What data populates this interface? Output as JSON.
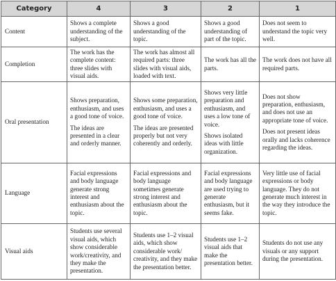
{
  "table": {
    "header": [
      "Category",
      "4",
      "3",
      "2",
      "1"
    ],
    "rows": [
      {
        "category": "Content",
        "cells": [
          [
            "Shows a complete understanding of the subject."
          ],
          [
            "Shows a good understanding of the topic."
          ],
          [
            "Shows a good understanding of part of the topic."
          ],
          [
            "Does not seem to understand the topic very well."
          ]
        ]
      },
      {
        "category": "Completion",
        "cells": [
          [
            "The work has the complete content: three slides with visual aids."
          ],
          [
            "The work has almost all required parts: three slides with visual aids, loaded with text."
          ],
          [
            "The work has all the parts."
          ],
          [
            "The work does not have all required parts."
          ]
        ]
      },
      {
        "category": "Oral presentation",
        "cells": [
          [
            "Shows preparation, enthusiasm, and uses a good tone of voice.",
            "The ideas are presented in a clear and orderly manner."
          ],
          [
            "Shows some preparation, enthusiasm, and uses a good tone of voice.",
            "The ideas are presented properly but not very coherently and orderly."
          ],
          [
            "Shows very little preparation and enthusiasm, and uses a low tone of voice.",
            "Shows isolated ideas with little organization."
          ],
          [
            "Does not show preparation, enthusiasm, and does not use an appropriate tone of voice.",
            "Does not present ideas orally and lacks coherence regarding the ideas."
          ]
        ]
      },
      {
        "category": "Language",
        "cells": [
          [
            "Facial expressions and body language generate strong interest and enthusiasm about the topic."
          ],
          [
            "Facial expressions and body language sometimes generate strong interest and enthusiasm about the topic."
          ],
          [
            "Facial expressions and body language are used trying to generate enthusiasm, but it seems fake."
          ],
          [
            "Very little use of facial expressions or body language. They do not generate much interest in the way they introduce the topic."
          ]
        ]
      },
      {
        "category": "Visual aids",
        "cells": [
          [
            "Students use several visual aids, which show considerable work/creativity, and they make the presentation."
          ],
          [
            "Students use 1–2 visual aids, which show considerable work/ creativity, and they make the presentation better."
          ],
          [
            "Students use 1–2 visual aids that make the presentation better."
          ],
          [
            "Students do not use any visuals or any support during the presentation."
          ]
        ]
      }
    ]
  }
}
